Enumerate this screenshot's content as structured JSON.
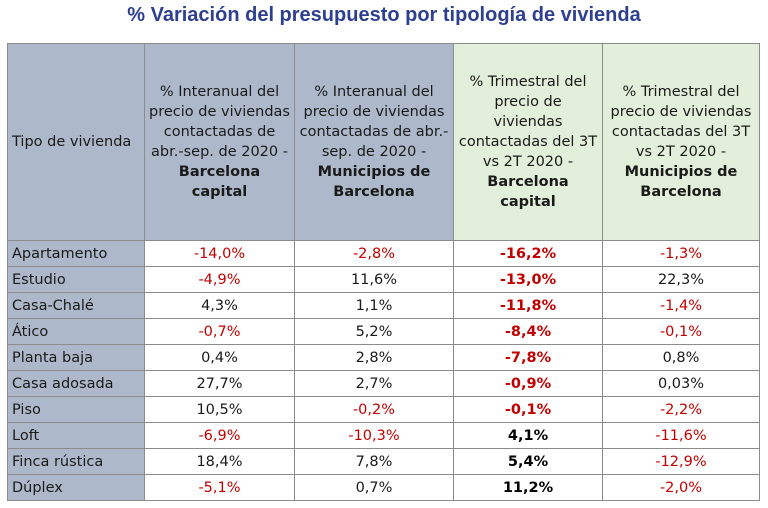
{
  "title": "% Variación del presupuesto por tipología de vivienda",
  "header": {
    "col0": "Tipo de vivienda",
    "col1_text": "% Interanual del precio de viviendas contactadas de abr.-sep. de 2020 -",
    "col1_bold": "Barcelona capital",
    "col2_text": "% Interanual del precio de viviendas contactadas de abr.-sep. de 2020 -",
    "col2_bold": "Municipios de Barcelona",
    "col3_text": "% Trimestral del precio de viviendas contactadas del 3T vs 2T 2020 -",
    "col3_bold": "Barcelona capital",
    "col4_text": "% Trimestral del precio de viviendas contactadas del 3T vs 2T 2020 -",
    "col4_bold": "Municipios de Barcelona"
  },
  "rows": [
    {
      "tipo": "Apartamento",
      "c1": "-14,0%",
      "c2": "-2,8%",
      "c3": "-16,2%",
      "c4": "-1,3%"
    },
    {
      "tipo": "Estudio",
      "c1": "-4,9%",
      "c2": "11,6%",
      "c3": "-13,0%",
      "c4": "22,3%"
    },
    {
      "tipo": "Casa-Chalé",
      "c1": "4,3%",
      "c2": "1,1%",
      "c3": "-11,8%",
      "c4": "-1,4%"
    },
    {
      "tipo": "Ático",
      "c1": "-0,7%",
      "c2": "5,2%",
      "c3": "-8,4%",
      "c4": "-0,1%"
    },
    {
      "tipo": "Planta baja",
      "c1": "0,4%",
      "c2": "2,8%",
      "c3": "-7,8%",
      "c4": "0,8%"
    },
    {
      "tipo": "Casa adosada",
      "c1": "27,7%",
      "c2": "2,7%",
      "c3": "-0,9%",
      "c4": "0,03%"
    },
    {
      "tipo": "Piso",
      "c1": "10,5%",
      "c2": "-0,2%",
      "c3": "-0,1%",
      "c4": "-2,2%"
    },
    {
      "tipo": "Loft",
      "c1": "-6,9%",
      "c2": "-10,3%",
      "c3": "4,1%",
      "c4": "-11,6%"
    },
    {
      "tipo": "Finca rústica",
      "c1": "18,4%",
      "c2": "7,8%",
      "c3": "5,4%",
      "c4": "-12,9%"
    },
    {
      "tipo": "Dúplex",
      "c1": "-5,1%",
      "c2": "0,7%",
      "c3": "11,2%",
      "c4": "-2,0%"
    }
  ],
  "colors": {
    "negative": "#c00000",
    "header_blue": "#adb9ca",
    "header_green": "#e2efda",
    "title": "#2e3f8f"
  }
}
